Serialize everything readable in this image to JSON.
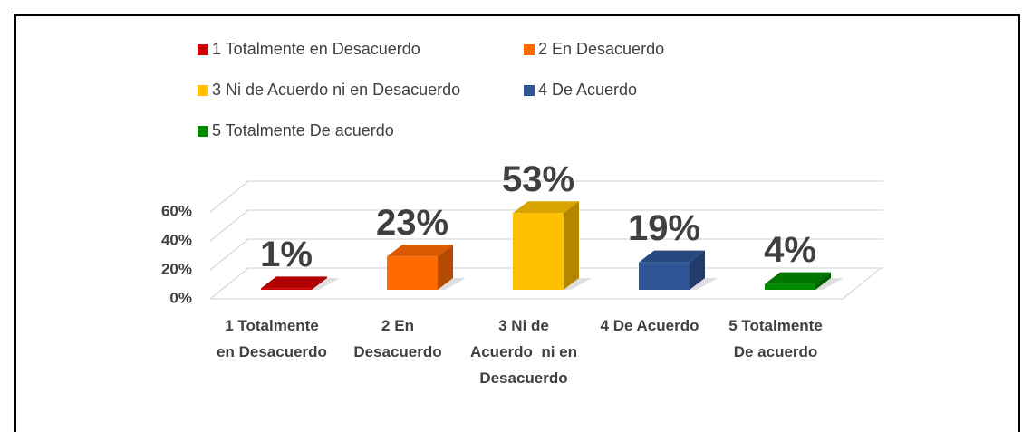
{
  "chart_data": {
    "type": "bar3d",
    "categories": [
      "1 Totalmente en Desacuerdo",
      "2 En Desacuerdo",
      "3 Ni de Acuerdo  ni en Desacuerdo",
      "4 De Acuerdo",
      "5 Totalmente De acuerdo"
    ],
    "values": [
      1,
      23,
      53,
      19,
      4
    ],
    "value_labels": [
      "1%",
      "23%",
      "53%",
      "19%",
      "4%"
    ],
    "colors": [
      "#d00000",
      "#ff6a00",
      "#ffc000",
      "#2f5597",
      "#008a00"
    ],
    "ylim": [
      0,
      60
    ],
    "yticks": [
      {
        "value": 0,
        "label": "0%"
      },
      {
        "value": 20,
        "label": "20%"
      },
      {
        "value": 40,
        "label": "40%"
      },
      {
        "value": 60,
        "label": "60%"
      }
    ],
    "grid": true,
    "legend": "top"
  }
}
